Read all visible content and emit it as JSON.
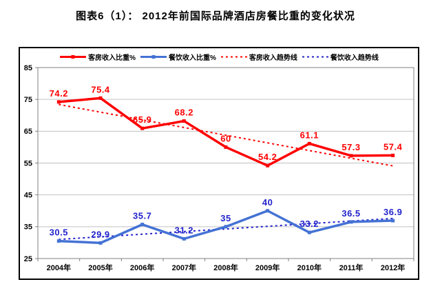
{
  "chart_data": {
    "type": "line",
    "title": "图表6（1）： 2012年前国际品牌酒店房餐比重的变化状况",
    "categories": [
      "2004年",
      "2005年",
      "2006年",
      "2007年",
      "2008年",
      "2009年",
      "2010年",
      "2011年",
      "2012年"
    ],
    "ylim": [
      25,
      85
    ],
    "y_ticks": [
      85,
      75,
      65,
      55,
      45,
      35,
      25
    ],
    "grid": true,
    "legend_position": "top",
    "series": [
      {
        "name": "客房收入比重%",
        "kind": "line",
        "style": "solid",
        "color": "#FF0000",
        "label_color": "#FF0000",
        "marker": "square",
        "values": [
          74.2,
          75.4,
          65.9,
          68.2,
          60,
          54.2,
          61.1,
          57.3,
          57.4
        ],
        "labels": [
          "74.2",
          "75.4",
          "65.9",
          "68.2",
          "60",
          "54.2",
          "61.1",
          "57.3",
          "57.4"
        ]
      },
      {
        "name": "餐饮收入比重%",
        "kind": "line",
        "style": "solid",
        "color": "#4472D4",
        "label_color": "#2222CC",
        "marker": "square",
        "values": [
          30.5,
          29.9,
          35.7,
          31.2,
          35,
          40,
          33.2,
          36.5,
          36.9
        ],
        "labels": [
          "30.5",
          "29.9",
          "35.7",
          "31.2",
          "35",
          "40",
          "33.2",
          "36.5",
          "36.9"
        ]
      },
      {
        "name": "客房收入趋势线",
        "kind": "trend",
        "style": "dotted",
        "color": "#FF0000",
        "endpoints": [
          73.4,
          54.1
        ]
      },
      {
        "name": "餐饮收入趋势线",
        "kind": "trend",
        "style": "dotted",
        "color": "#2222CC",
        "endpoints": [
          31.0,
          37.6
        ]
      }
    ],
    "colors": {
      "grid": "#C0C0C0",
      "axis": "#808080",
      "frame": "#000000",
      "background": "#FFFFFF",
      "text": "#000000"
    }
  }
}
